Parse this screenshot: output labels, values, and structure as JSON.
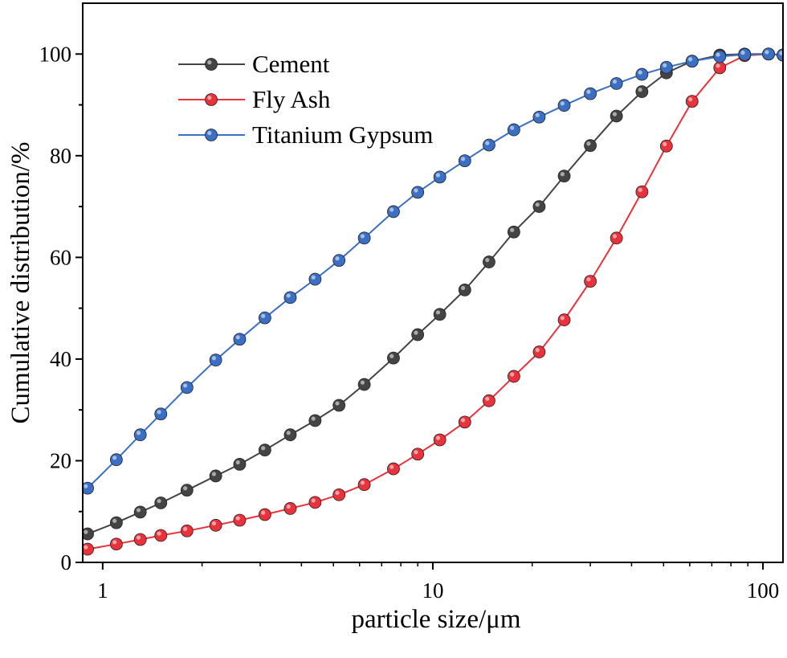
{
  "chart_data": {
    "type": "line",
    "title": "",
    "xlabel": "particle size/μm",
    "ylabel": "Cumulative distribution/%",
    "xscale": "log",
    "xlim": [
      0.87,
      115
    ],
    "ylim": [
      0,
      110
    ],
    "xticks": [
      {
        "value": 1,
        "label": "1"
      },
      {
        "value": 10,
        "label": "10"
      },
      {
        "value": 100,
        "label": "100"
      }
    ],
    "yticks": [
      {
        "value": 0,
        "label": "0"
      },
      {
        "value": 20,
        "label": "20"
      },
      {
        "value": 40,
        "label": "40"
      },
      {
        "value": 60,
        "label": "60"
      },
      {
        "value": 80,
        "label": "80"
      },
      {
        "value": 100,
        "label": "100"
      }
    ],
    "legend_position": "top-left",
    "series": [
      {
        "name": "Cement",
        "color": "#444444",
        "x": [
          0.9,
          1.1,
          1.3,
          1.5,
          1.8,
          2.2,
          2.6,
          3.1,
          3.7,
          4.4,
          5.2,
          6.2,
          7.6,
          9.0,
          10.5,
          12.5,
          14.8,
          17.6,
          21,
          25,
          30,
          36,
          43,
          51,
          61,
          74,
          88,
          104,
          115
        ],
        "y": [
          5.6,
          7.8,
          9.9,
          11.7,
          14.2,
          17.0,
          19.3,
          22.1,
          25.1,
          27.9,
          30.9,
          35.0,
          40.2,
          44.8,
          48.8,
          53.6,
          59.1,
          65.0,
          70.0,
          76.0,
          82.0,
          87.8,
          92.6,
          96.3,
          98.6,
          99.8,
          100,
          100,
          99.8
        ]
      },
      {
        "name": "Fly Ash",
        "color": "#e8323c",
        "x": [
          0.9,
          1.1,
          1.3,
          1.5,
          1.8,
          2.2,
          2.6,
          3.1,
          3.7,
          4.4,
          5.2,
          6.2,
          7.6,
          9.0,
          10.5,
          12.5,
          14.8,
          17.6,
          21,
          25,
          30,
          36,
          43,
          51,
          61,
          74,
          88,
          104,
          115
        ],
        "y": [
          2.6,
          3.6,
          4.5,
          5.3,
          6.2,
          7.3,
          8.3,
          9.4,
          10.6,
          11.8,
          13.3,
          15.3,
          18.4,
          21.3,
          24.1,
          27.6,
          31.8,
          36.6,
          41.4,
          47.7,
          55.3,
          63.8,
          72.9,
          81.9,
          90.7,
          97.3,
          99.7,
          100,
          99.8
        ]
      },
      {
        "name": "Titanium Gypsum",
        "color": "#3a6fc4",
        "x": [
          0.9,
          1.1,
          1.3,
          1.5,
          1.8,
          2.2,
          2.6,
          3.1,
          3.7,
          4.4,
          5.2,
          6.2,
          7.6,
          9.0,
          10.5,
          12.5,
          14.8,
          17.6,
          21,
          25,
          30,
          36,
          43,
          51,
          61,
          74,
          88,
          104,
          115
        ],
        "y": [
          14.6,
          20.2,
          25.1,
          29.2,
          34.4,
          39.8,
          43.9,
          48.1,
          52.1,
          55.7,
          59.4,
          63.8,
          69.0,
          72.8,
          75.8,
          79.0,
          82.1,
          85.1,
          87.6,
          89.9,
          92.2,
          94.2,
          96.0,
          97.4,
          98.6,
          99.5,
          99.9,
          100,
          99.8
        ]
      }
    ]
  }
}
